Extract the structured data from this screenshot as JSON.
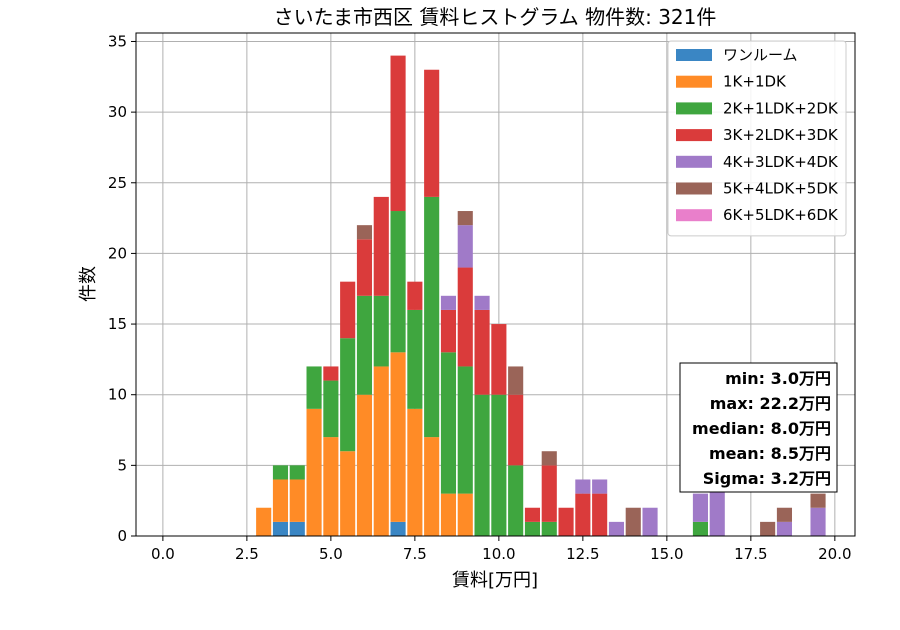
{
  "chart_data": {
    "type": "bar",
    "stacked": true,
    "title": "さいたま市西区 賃料ヒストグラム 物件数: 321件",
    "xlabel": "賃料[万円]",
    "ylabel": "件数",
    "xlim": [
      -0.8,
      20.6
    ],
    "ylim": [
      0,
      35.6
    ],
    "xticks": [
      0.0,
      2.5,
      5.0,
      7.5,
      10.0,
      12.5,
      15.0,
      17.5,
      20.0
    ],
    "xtick_labels": [
      "0.0",
      "2.5",
      "5.0",
      "7.5",
      "10.0",
      "12.5",
      "15.0",
      "17.5",
      "20.0"
    ],
    "yticks": [
      0,
      5,
      10,
      15,
      20,
      25,
      30,
      35
    ],
    "ytick_labels": [
      "0",
      "5",
      "10",
      "15",
      "20",
      "25",
      "30",
      "35"
    ],
    "grid": true,
    "legend_position": "top-right",
    "bin_width": 0.5,
    "bins": [
      3.0,
      3.5,
      4.0,
      4.5,
      5.0,
      5.5,
      6.0,
      6.5,
      7.0,
      7.5,
      8.0,
      8.5,
      9.0,
      9.5,
      10.0,
      10.5,
      11.0,
      11.5,
      12.0,
      12.5,
      13.0,
      13.5,
      14.0,
      14.5,
      15.0,
      15.5,
      16.0,
      16.5,
      17.0,
      17.5,
      18.0,
      18.5,
      19.0,
      19.5
    ],
    "series": [
      {
        "name": "ワンルーム",
        "color": "#3a86c4",
        "values": [
          0,
          1,
          1,
          0,
          0,
          0,
          0,
          0,
          1,
          0,
          0,
          0,
          0,
          0,
          0,
          0,
          0,
          0,
          0,
          0,
          0,
          0,
          0,
          0,
          0,
          0,
          0,
          0,
          0,
          0,
          0,
          0,
          0,
          0
        ]
      },
      {
        "name": "1K+1DK",
        "color": "#ff8b26",
        "values": [
          2,
          3,
          3,
          9,
          7,
          6,
          10,
          12,
          12,
          9,
          7,
          3,
          3,
          0,
          0,
          0,
          0,
          0,
          0,
          0,
          0,
          0,
          0,
          0,
          0,
          0,
          0,
          0,
          0,
          0,
          0,
          0,
          0,
          0
        ]
      },
      {
        "name": "2K+1LDK+2DK",
        "color": "#3fa63f",
        "values": [
          0,
          1,
          1,
          3,
          4,
          8,
          7,
          5,
          10,
          7,
          17,
          10,
          9,
          10,
          10,
          5,
          1,
          1,
          0,
          0,
          0,
          0,
          0,
          0,
          0,
          0,
          1,
          0,
          0,
          0,
          0,
          0,
          0,
          0
        ]
      },
      {
        "name": "3K+2LDK+3DK",
        "color": "#da3b3b",
        "values": [
          0,
          0,
          0,
          0,
          1,
          4,
          4,
          7,
          11,
          2,
          9,
          3,
          7,
          6,
          5,
          5,
          1,
          4,
          2,
          3,
          3,
          0,
          0,
          0,
          0,
          0,
          0,
          0,
          0,
          0,
          0,
          0,
          0,
          0
        ]
      },
      {
        "name": "4K+3LDK+4DK",
        "color": "#a07ac8",
        "values": [
          0,
          0,
          0,
          0,
          0,
          0,
          0,
          0,
          0,
          0,
          0,
          1,
          3,
          1,
          0,
          0,
          0,
          0,
          0,
          1,
          1,
          1,
          0,
          2,
          0,
          0,
          2,
          4,
          0,
          0,
          0,
          1,
          0,
          2
        ]
      },
      {
        "name": "5K+4LDK+5DK",
        "color": "#9a6458",
        "values": [
          0,
          0,
          0,
          0,
          0,
          0,
          1,
          0,
          0,
          0,
          0,
          0,
          1,
          0,
          0,
          2,
          0,
          1,
          0,
          0,
          0,
          0,
          2,
          0,
          0,
          0,
          0,
          0,
          0,
          0,
          1,
          1,
          0,
          1
        ]
      },
      {
        "name": "6K+5LDK+6DK",
        "color": "#e97fcb",
        "values": [
          0,
          0,
          0,
          0,
          0,
          0,
          0,
          0,
          0,
          0,
          0,
          0,
          0,
          0,
          0,
          0,
          0,
          0,
          0,
          0,
          0,
          0,
          0,
          0,
          0,
          0,
          0,
          0,
          0,
          0,
          0,
          0,
          0,
          0
        ]
      }
    ],
    "stats_box": {
      "lines": [
        "min: 3.0万円",
        "max: 22.2万円",
        "median: 8.0万円",
        "mean: 8.5万円",
        "Sigma: 3.2万円"
      ]
    }
  }
}
